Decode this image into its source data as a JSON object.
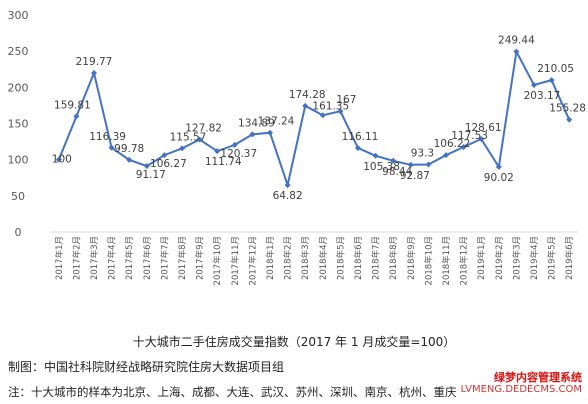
{
  "chart_data": {
    "type": "line",
    "title": "十大城市二手住房成交量指数（2017 年 1 月成交量=100）",
    "ylim": [
      0,
      300
    ],
    "yticks": [
      0,
      50,
      100,
      150,
      200,
      250,
      300
    ],
    "grid": false,
    "line_color": "#4472c4",
    "categories": [
      "2017年1月",
      "2017年2月",
      "2017年3月",
      "2017年4月",
      "2017年5月",
      "2017年6月",
      "2017年7月",
      "2017年8月",
      "2017年9月",
      "2017年10月",
      "2017年11月",
      "2017年12月",
      "2018年1月",
      "2018年2月",
      "2018年3月",
      "2018年4月",
      "2018年5月",
      "2018年6月",
      "2018年7月",
      "2018年8月",
      "2018年9月",
      "2018年10月",
      "2018年11月",
      "2018年12月",
      "2019年1月",
      "2019年2月",
      "2019年3月",
      "2019年4月",
      "2019年5月",
      "2019年6月"
    ],
    "values": [
      100,
      159.81,
      219.77,
      116.39,
      99.78,
      91.17,
      106.27,
      115.57,
      127.82,
      111.74,
      120.37,
      134.89,
      137.24,
      64.82,
      174.28,
      161.35,
      167,
      116.11,
      105.38,
      98.44,
      92.87,
      93.3,
      106.22,
      117.53,
      128.61,
      90.02,
      249.44,
      203.17,
      210.05,
      155.28
    ],
    "labels": [
      "100",
      "159.81",
      "219.77",
      "116.39",
      "99.78",
      "91.17",
      "106.27",
      "115.57",
      "127.82",
      "111.74",
      "120.37",
      "134.89",
      "137.24",
      "64.82",
      "174.28",
      "161.35",
      "167",
      "116.11",
      "105.38",
      "98.44",
      "92.87",
      "93.3",
      "106.22",
      "117.53",
      "128.61",
      "90.02",
      "249.44",
      "203.17",
      "210.05",
      "155.28"
    ]
  },
  "credit": "制图：中国社科院财经战略研究院住房大数据项目组",
  "note": "注：十大城市的样本为北京、上海、成都、大连、武汉、苏州、深圳、南京、杭州、重庆",
  "watermark": {
    "line1": "绿梦内容管理系统",
    "line2": "LVMENG.DEDECMS.COM"
  }
}
